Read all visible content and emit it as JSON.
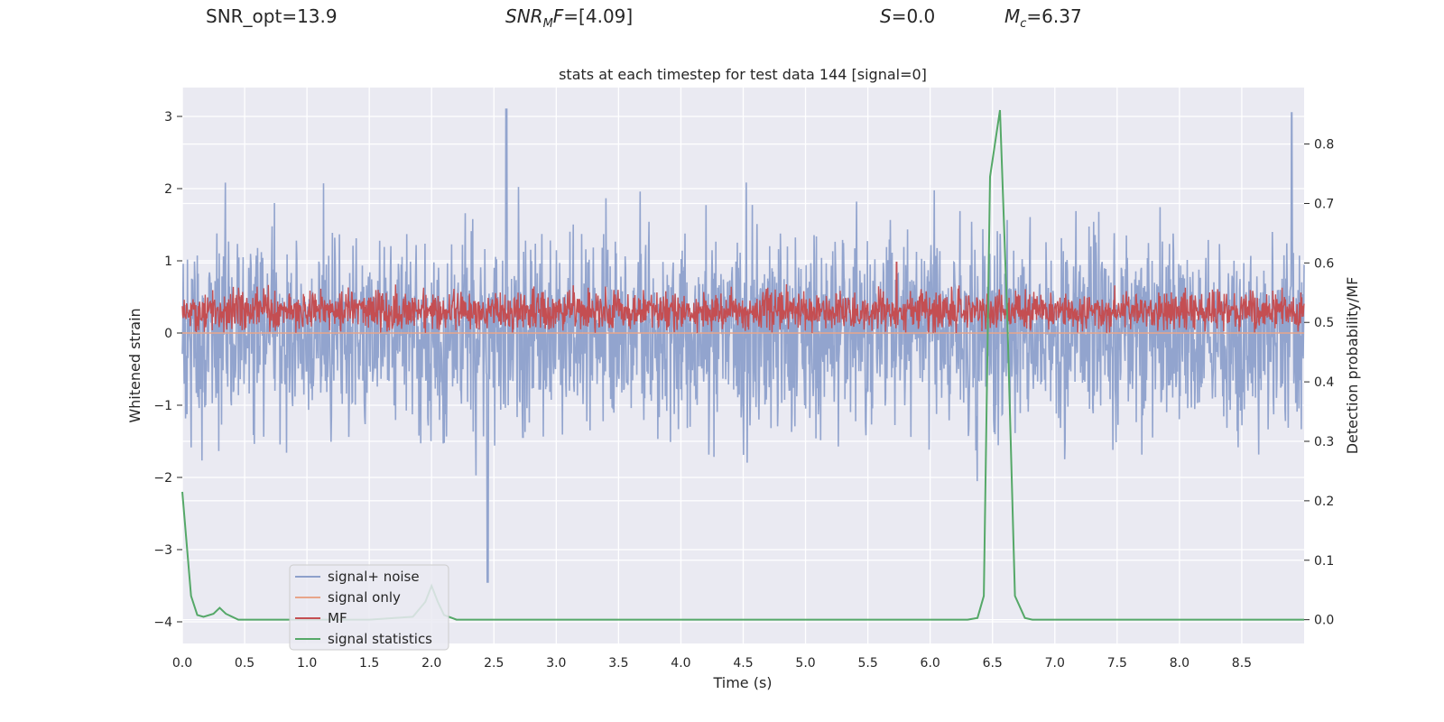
{
  "header": {
    "snr_opt": "SNR_opt=13.9",
    "snr_mf_base": "SNR",
    "snr_mf_sub": "M",
    "snr_mf_rest": "F",
    "snr_mf_value": "=[4.09]",
    "s_label": "S",
    "s_value": "=0.0",
    "mc_base": "M",
    "mc_sub": "c",
    "mc_value": "=6.37"
  },
  "chart_data": {
    "type": "line",
    "title": "stats at each timestep for test data 144 [signal=0]",
    "xlabel": "Time (s)",
    "ylabel": "Whitened strain",
    "ylabel_right": "Detection probability/MF",
    "xlim": [
      0.0,
      9.0
    ],
    "ylim": [
      -4.3,
      3.4
    ],
    "ylim_right": [
      -0.04,
      0.895
    ],
    "x_ticks": [
      "0.0",
      "0.5",
      "1.0",
      "1.5",
      "2.0",
      "2.5",
      "3.0",
      "3.5",
      "4.0",
      "4.5",
      "5.0",
      "5.5",
      "6.0",
      "6.5",
      "7.0",
      "7.5",
      "8.0",
      "8.5"
    ],
    "y_ticks": [
      "3",
      "2",
      "1",
      "0",
      "−1",
      "−2",
      "−3",
      "−4"
    ],
    "y_ticks_right": [
      "0.8",
      "0.7",
      "0.6",
      "0.5",
      "0.4",
      "0.3",
      "0.2",
      "0.1",
      "0.0"
    ],
    "grid": true,
    "legend_position": "lower-left",
    "series": [
      {
        "name": "signal+ noise",
        "color": "#8da0cb",
        "axis": "left",
        "approx_range": [
          -3.45,
          3.1
        ],
        "note_values": "dense noise centered near 0, typical envelope ±1.8, peaks to 3.1 near t=2.6 and t=8.9, dips to -3.45 near t=2.45"
      },
      {
        "name": "signal only",
        "color": "#e8a58a",
        "axis": "left",
        "x": [
          0.0,
          9.0
        ],
        "y": [
          0.0,
          0.0
        ]
      },
      {
        "name": "MF",
        "color": "#c44e52",
        "axis": "left",
        "approx_range": [
          0.0,
          0.98
        ],
        "note_values": "positive noise-like trace, typical 0.1–0.6, peak 0.98 near t=5.73"
      },
      {
        "name": "signal statistics",
        "color": "#55a868",
        "axis": "right",
        "x": [
          0.0,
          0.07,
          0.12,
          0.17,
          0.25,
          0.3,
          0.35,
          0.45,
          1.0,
          1.5,
          1.85,
          1.95,
          2.0,
          2.05,
          2.1,
          2.2,
          6.3,
          6.38,
          6.43,
          6.48,
          6.56,
          6.62,
          6.68,
          6.76,
          6.82,
          7.2,
          9.0
        ],
        "y": [
          0.215,
          0.04,
          0.008,
          0.005,
          0.01,
          0.02,
          0.01,
          0.0,
          0.0,
          0.0,
          0.005,
          0.03,
          0.057,
          0.03,
          0.008,
          0.0,
          0.0,
          0.003,
          0.04,
          0.745,
          0.857,
          0.5,
          0.04,
          0.003,
          0.0,
          0.0,
          0.0
        ]
      }
    ]
  }
}
